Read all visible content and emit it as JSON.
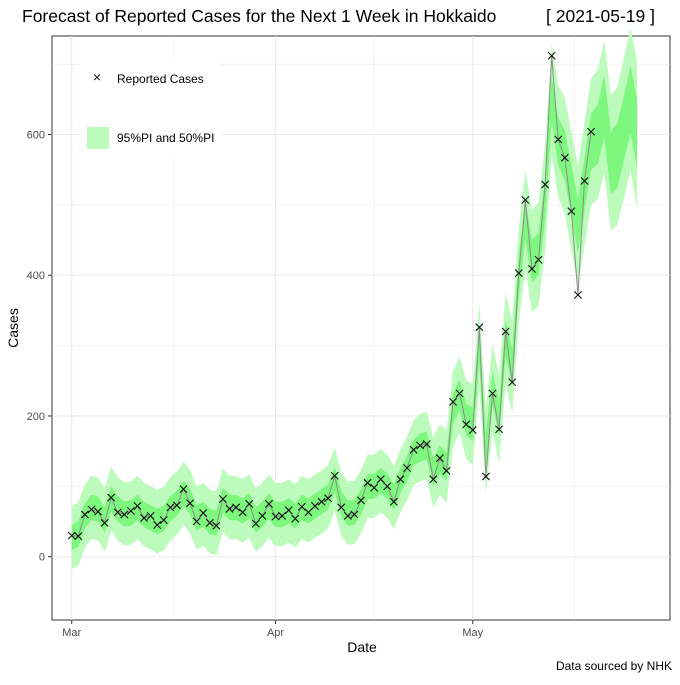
{
  "header": {
    "title": "Forecast of Reported Cases for the Next 1 Week in Hokkaido",
    "date": "[ 2021-05-19 ]"
  },
  "footer": {
    "source": "Data sourced by NHK"
  },
  "colors": {
    "pi95": "#bdfbbd",
    "pi50": "#7ef77e",
    "observed_line": "#8c8c8c",
    "marker": "#111111",
    "grid": "#ebebeb"
  },
  "chart_data": {
    "type": "line",
    "title": "Forecast of Reported Cases for the Next 1 Week in Hokkaido",
    "subtitle": "[ 2021-05-19 ]",
    "xlabel": "Date",
    "ylabel": "Cases",
    "xlim": [
      "2021-02-26",
      "2021-05-31"
    ],
    "ylim": [
      -90,
      740
    ],
    "x_ticks": [
      {
        "date": "2021-03-01",
        "label": "Mar"
      },
      {
        "date": "2021-04-01",
        "label": "Apr"
      },
      {
        "date": "2021-05-01",
        "label": "May"
      }
    ],
    "y_ticks": [
      0,
      200,
      400,
      600
    ],
    "grid": true,
    "legend": {
      "position": "top-left",
      "entries": [
        {
          "key": "reported",
          "label": "Reported Cases",
          "symbol": "×"
        },
        {
          "key": "interval",
          "label": "95%PI and 50%PI"
        }
      ]
    },
    "reported_cases": {
      "start_date": "2021-03-01",
      "values": [
        30,
        29,
        60,
        67,
        64,
        48,
        84,
        63,
        60,
        65,
        72,
        55,
        58,
        45,
        52,
        70,
        73,
        96,
        76,
        50,
        62,
        48,
        44,
        82,
        68,
        70,
        63,
        75,
        47,
        58,
        75,
        57,
        58,
        66,
        54,
        71,
        63,
        72,
        78,
        83,
        115,
        70,
        58,
        60,
        80,
        105,
        98,
        110,
        100,
        78,
        110,
        126,
        152,
        158,
        160,
        110,
        140,
        122,
        220,
        232,
        188,
        180,
        326,
        114,
        232,
        181,
        320,
        248,
        403,
        507,
        409,
        422,
        529,
        712,
        593,
        567,
        491,
        372,
        534,
        604
      ]
    },
    "forecast_interval": {
      "start_date": "2021-03-01",
      "median": [
        27,
        32,
        58,
        70,
        68,
        52,
        82,
        68,
        61,
        62,
        70,
        60,
        55,
        50,
        54,
        68,
        76,
        90,
        78,
        55,
        60,
        50,
        48,
        80,
        70,
        70,
        65,
        72,
        52,
        60,
        72,
        60,
        60,
        65,
        58,
        70,
        65,
        72,
        78,
        85,
        110,
        75,
        62,
        63,
        78,
        100,
        100,
        108,
        100,
        84,
        108,
        125,
        148,
        155,
        158,
        120,
        138,
        128,
        210,
        230,
        195,
        188,
        300,
        150,
        240,
        195,
        310,
        270,
        400,
        480,
        420,
        430,
        510,
        650,
        590,
        570,
        520,
        470,
        530,
        590,
        600,
        640,
        560,
        570,
        610,
        650,
        600
      ],
      "pi50_halfwidth": [
        18,
        18,
        18,
        18,
        18,
        18,
        18,
        18,
        18,
        18,
        18,
        18,
        18,
        18,
        18,
        18,
        18,
        18,
        18,
        18,
        18,
        18,
        18,
        18,
        18,
        18,
        18,
        18,
        18,
        18,
        18,
        18,
        18,
        18,
        18,
        18,
        18,
        18,
        18,
        18,
        18,
        18,
        18,
        18,
        18,
        18,
        18,
        18,
        18,
        18,
        18,
        18,
        18,
        20,
        20,
        20,
        20,
        20,
        22,
        22,
        22,
        24,
        24,
        24,
        24,
        24,
        26,
        26,
        28,
        28,
        30,
        30,
        32,
        32,
        34,
        36,
        36,
        38,
        38,
        40,
        42,
        44,
        44,
        46,
        46,
        48,
        48
      ],
      "pi95_halfwidth": [
        45,
        45,
        45,
        45,
        45,
        45,
        45,
        45,
        45,
        45,
        45,
        45,
        45,
        45,
        45,
        45,
        45,
        45,
        45,
        45,
        45,
        45,
        45,
        45,
        45,
        45,
        45,
        45,
        45,
        45,
        45,
        45,
        45,
        45,
        45,
        45,
        45,
        45,
        45,
        45,
        45,
        45,
        45,
        45,
        45,
        45,
        45,
        45,
        45,
        45,
        45,
        45,
        46,
        48,
        48,
        50,
        50,
        52,
        54,
        54,
        56,
        58,
        60,
        60,
        62,
        62,
        64,
        66,
        68,
        70,
        72,
        74,
        76,
        78,
        80,
        82,
        84,
        86,
        88,
        90,
        92,
        94,
        96,
        98,
        100,
        102,
        104
      ]
    }
  }
}
